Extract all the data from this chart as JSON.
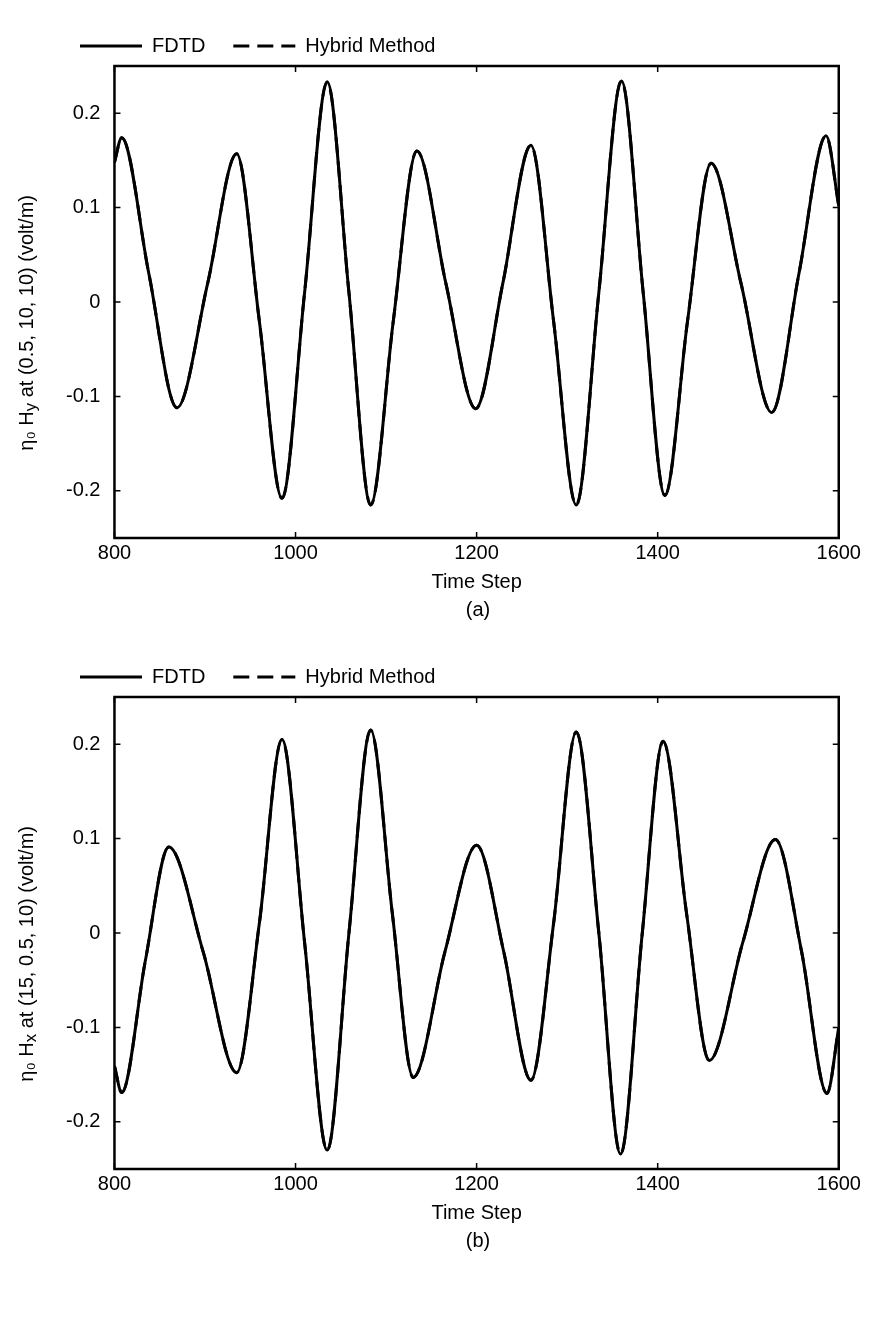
{
  "chart_data": [
    {
      "type": "line",
      "xlabel": "Time Step",
      "ylabel": "η₀ H$_{y}$  at (0.5, 10, 10) (volt/m)",
      "annotations": [
        "(a)"
      ],
      "legend": "top",
      "grid": false,
      "xlim": [
        800,
        1600
      ],
      "xticks": [
        800,
        1000,
        1200,
        1400,
        1600
      ],
      "ylim": [
        -0.25,
        0.25
      ],
      "yticks": [
        -0.2,
        -0.1,
        0,
        0.1,
        0.2
      ],
      "x": [
        800,
        808,
        838,
        869,
        903,
        935,
        960,
        985,
        1010,
        1035,
        1059,
        1083,
        1108,
        1134,
        1166,
        1199,
        1229,
        1260,
        1285,
        1310,
        1335,
        1360,
        1384,
        1408,
        1433,
        1459,
        1492,
        1526,
        1556,
        1586,
        1600
      ],
      "series": [
        {
          "name": "FDTD",
          "color": "#000000",
          "line_style": "solid",
          "values": [
            0.148,
            0.174,
            0.03,
            -0.112,
            0.02,
            0.157,
            -0.02,
            -0.208,
            0.01,
            0.233,
            0.01,
            -0.215,
            -0.02,
            0.16,
            0.02,
            -0.113,
            0.02,
            0.166,
            -0.02,
            -0.215,
            0.01,
            0.234,
            0.01,
            -0.205,
            -0.02,
            0.147,
            0.02,
            -0.117,
            0.03,
            0.176,
            0.102
          ]
        },
        {
          "name": "Hybrid Method",
          "color": "#000000",
          "line_style": "dashed",
          "values": [
            0.148,
            0.174,
            0.03,
            -0.112,
            0.02,
            0.157,
            -0.02,
            -0.208,
            0.01,
            0.233,
            0.01,
            -0.215,
            -0.02,
            0.16,
            0.02,
            -0.113,
            0.02,
            0.166,
            -0.02,
            -0.215,
            0.01,
            0.234,
            0.01,
            -0.205,
            -0.02,
            0.147,
            0.02,
            -0.117,
            0.03,
            0.176,
            0.102
          ]
        }
      ]
    },
    {
      "type": "line",
      "xlabel": "Time Step",
      "ylabel": "η₀ H$_{x}$  at (15, 0.5, 10) (volt/m)",
      "annotations": [
        "(b)"
      ],
      "legend": "top",
      "grid": false,
      "xlim": [
        800,
        1600
      ],
      "xticks": [
        800,
        1000,
        1200,
        1400,
        1600
      ],
      "ylim": [
        -0.25,
        0.25
      ],
      "yticks": [
        -0.2,
        -0.1,
        0,
        0.1,
        0.2
      ],
      "x": [
        800,
        808,
        834,
        860,
        898,
        935,
        960,
        985,
        1010,
        1035,
        1059,
        1083,
        1107,
        1130,
        1165,
        1200,
        1230,
        1260,
        1285,
        1310,
        1335,
        1359,
        1383,
        1406,
        1432,
        1457,
        1494,
        1530,
        1559,
        1587,
        1600
      ],
      "series": [
        {
          "name": "FDTD",
          "color": "#000000",
          "line_style": "solid",
          "values": [
            -0.141,
            -0.169,
            -0.03,
            0.091,
            -0.02,
            -0.148,
            0.01,
            0.205,
            -0.01,
            -0.23,
            0.0,
            0.215,
            0.02,
            -0.153,
            -0.02,
            0.093,
            -0.02,
            -0.156,
            0.01,
            0.213,
            0.0,
            -0.234,
            0.0,
            0.203,
            0.02,
            -0.135,
            -0.01,
            0.099,
            -0.02,
            -0.17,
            -0.1
          ]
        },
        {
          "name": "Hybrid Method",
          "color": "#000000",
          "line_style": "dashed",
          "values": [
            -0.141,
            -0.169,
            -0.03,
            0.091,
            -0.02,
            -0.148,
            0.01,
            0.205,
            -0.01,
            -0.23,
            0.0,
            0.215,
            0.02,
            -0.153,
            -0.02,
            0.093,
            -0.02,
            -0.156,
            0.01,
            0.213,
            0.0,
            -0.234,
            0.0,
            0.203,
            0.02,
            -0.135,
            -0.01,
            0.099,
            -0.02,
            -0.17,
            -0.1
          ]
        }
      ]
    }
  ]
}
